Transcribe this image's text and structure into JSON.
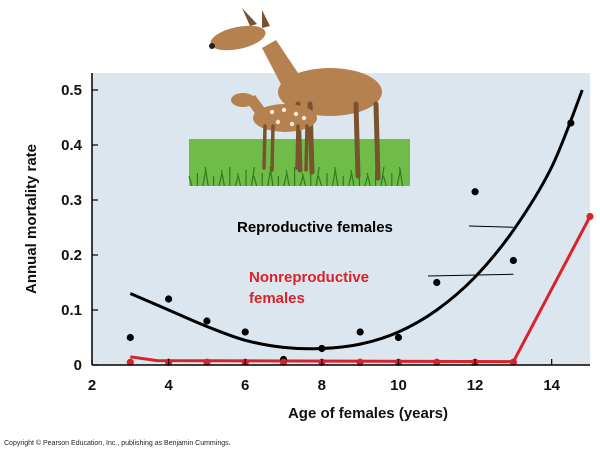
{
  "chart_data": {
    "type": "scatter",
    "title": "",
    "xlabel": "Age of females (years)",
    "ylabel": "Annual mortality rate",
    "xlim": [
      2,
      15
    ],
    "ylim": [
      0,
      0.5
    ],
    "xticks": [
      2,
      4,
      6,
      8,
      10,
      12,
      14
    ],
    "yticks": [
      "0",
      "0.1",
      "0.2",
      "0.3",
      "0.4",
      "0.5"
    ],
    "grid": false,
    "series": [
      {
        "name": "Reproductive females",
        "color": "#000000",
        "points": [
          [
            3,
            0.05
          ],
          [
            4,
            0.12
          ],
          [
            5,
            0.08
          ],
          [
            6,
            0.06
          ],
          [
            7,
            0.01
          ],
          [
            8,
            0.03
          ],
          [
            9,
            0.06
          ],
          [
            10,
            0.05
          ],
          [
            11,
            0.15
          ],
          [
            12,
            0.315
          ],
          [
            13,
            0.19
          ],
          [
            14.5,
            0.44
          ]
        ],
        "fit": [
          [
            3.0,
            0.13
          ],
          [
            4.0,
            0.1
          ],
          [
            5.0,
            0.07
          ],
          [
            6.0,
            0.045
          ],
          [
            7.0,
            0.032
          ],
          [
            8.0,
            0.03
          ],
          [
            9.0,
            0.038
          ],
          [
            10.0,
            0.06
          ],
          [
            11.0,
            0.1
          ],
          [
            12.0,
            0.16
          ],
          [
            13.0,
            0.245
          ],
          [
            14.0,
            0.36
          ],
          [
            14.8,
            0.5
          ]
        ]
      },
      {
        "name": "Nonreproductive females",
        "color": "#d8232a",
        "points": [
          [
            3,
            0.005
          ],
          [
            4,
            0.005
          ],
          [
            5,
            0.005
          ],
          [
            6,
            0.005
          ],
          [
            7,
            0.005
          ],
          [
            8,
            0.005
          ],
          [
            9,
            0.005
          ],
          [
            10,
            0.005
          ],
          [
            11,
            0.005
          ],
          [
            12,
            0.005
          ],
          [
            13,
            0.005
          ],
          [
            15,
            0.27
          ]
        ],
        "fit": [
          [
            3.0,
            0.015
          ],
          [
            3.7,
            0.008
          ],
          [
            13.0,
            0.006
          ],
          [
            15.0,
            0.27
          ]
        ]
      }
    ],
    "annotations": [
      {
        "text": "Reproductive females",
        "series": 0,
        "x": 13.0,
        "y": 0.245
      },
      {
        "text": "Nonreproductive",
        "text2": "females",
        "series": 1,
        "x": 13.0,
        "y": 0.165
      }
    ]
  },
  "colors": {
    "plot_background": "#dce6ef",
    "reproductive": "#000000",
    "nonreproductive": "#d8232a"
  },
  "illustration": "deer-doe-and-fawn-on-grass",
  "copyright": "Copyright © Pearson Education, Inc., publishing as Benjamin Cummings."
}
